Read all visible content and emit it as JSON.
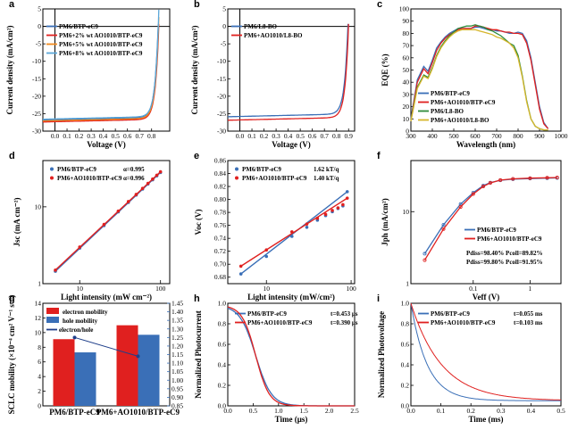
{
  "colors": {
    "blue": "#3a6fb7",
    "red": "#e0201f",
    "orange": "#f08a1e",
    "lightblue": "#5ba7d8",
    "green": "#2e8b3a",
    "yellow": "#d6b52a",
    "navy": "#1f3f8a"
  },
  "chart_data": [
    {
      "id": "a",
      "panel_label": "a",
      "type": "line",
      "xlabel": "Voltage (V)",
      "ylabel": "Current density (mA/cm²)",
      "xlim": [
        -0.1,
        0.95
      ],
      "ylim": [
        -30,
        5
      ],
      "xticks": [
        "0.0",
        "0.1",
        "0.2",
        "0.3",
        "0.4",
        "0.5",
        "0.6",
        "0.7",
        "0.8"
      ],
      "yticks": [
        "-30",
        "-25",
        "-20",
        "-15",
        "-10",
        "-5",
        "0",
        "5"
      ],
      "series": [
        {
          "name": "PM6/BTP-eC9",
          "color": "#3a6fb7",
          "jsc": 26.7,
          "voc": 0.855
        },
        {
          "name": "PM6+2% wt AO1010/BTP-eC9",
          "color": "#e0201f",
          "jsc": 27.3,
          "voc": 0.86
        },
        {
          "name": "PM6+5% wt AO1010/BTP-eC9",
          "color": "#f08a1e",
          "jsc": 27.0,
          "voc": 0.858
        },
        {
          "name": "PM6+8% wt AO1010/BTP-eC9",
          "color": "#5ba7d8",
          "jsc": 26.5,
          "voc": 0.856
        }
      ]
    },
    {
      "id": "b",
      "panel_label": "b",
      "type": "line",
      "xlabel": "Voltage (V)",
      "ylabel": "Current density (mA/cm²)",
      "xlim": [
        -0.1,
        0.95
      ],
      "ylim": [
        -30,
        5
      ],
      "xticks": [
        "0.0",
        "0.1",
        "0.2",
        "0.3",
        "0.4",
        "0.5",
        "0.6",
        "0.7",
        "0.8",
        "0.9"
      ],
      "yticks": [
        "-30",
        "-25",
        "-20",
        "-15",
        "-10",
        "-5",
        "0",
        "5"
      ],
      "series": [
        {
          "name": "PM6/L8-BO",
          "color": "#3a6fb7",
          "jsc": 25.8,
          "voc": 0.895
        },
        {
          "name": "PM6+AO1010/L8-BO",
          "color": "#e0201f",
          "jsc": 26.8,
          "voc": 0.9
        }
      ]
    },
    {
      "id": "c",
      "panel_label": "c",
      "type": "line",
      "xlabel": "Wavelength (nm)",
      "ylabel": "EQE (%)",
      "xlim": [
        300,
        1000
      ],
      "ylim": [
        0,
        100
      ],
      "xticks": [
        "300",
        "400",
        "500",
        "600",
        "700",
        "800",
        "900",
        "1000"
      ],
      "yticks": [
        "0",
        "10",
        "20",
        "30",
        "40",
        "50",
        "60",
        "70",
        "80",
        "90",
        "100"
      ],
      "x": [
        300,
        330,
        360,
        380,
        400,
        420,
        440,
        460,
        480,
        500,
        520,
        540,
        560,
        580,
        600,
        620,
        640,
        660,
        680,
        700,
        720,
        740,
        760,
        780,
        800,
        820,
        840,
        860,
        880,
        900,
        920,
        940
      ],
      "series": [
        {
          "name": "PM6/BTP-eC9",
          "color": "#3a6fb7",
          "values": [
            10,
            42,
            53,
            49,
            58,
            68,
            73,
            77,
            80,
            82,
            84,
            84,
            84,
            84,
            85,
            85,
            84,
            83,
            83,
            82,
            82,
            81,
            80,
            80,
            81,
            80,
            74,
            60,
            40,
            20,
            7,
            2
          ]
        },
        {
          "name": "PM6+AO1010/BTP-eC9",
          "color": "#e0201f",
          "values": [
            9,
            40,
            51,
            47,
            56,
            66,
            72,
            76,
            79,
            81,
            83,
            84,
            84,
            84,
            86,
            86,
            85,
            84,
            83,
            83,
            82,
            81,
            81,
            80,
            80,
            79,
            72,
            58,
            38,
            18,
            6,
            2
          ]
        },
        {
          "name": "PM6/L8-BO",
          "color": "#2e8b3a",
          "values": [
            9,
            36,
            46,
            44,
            52,
            62,
            69,
            74,
            78,
            81,
            84,
            85,
            86,
            86,
            87,
            86,
            85,
            83,
            82,
            80,
            78,
            75,
            72,
            70,
            62,
            45,
            25,
            10,
            4,
            2,
            1,
            1
          ]
        },
        {
          "name": "PM6+AO1010/L8-BO",
          "color": "#d6b52a",
          "values": [
            8,
            35,
            45,
            43,
            51,
            61,
            68,
            73,
            77,
            80,
            82,
            83,
            83,
            83,
            83,
            82,
            81,
            80,
            79,
            77,
            76,
            74,
            72,
            68,
            60,
            44,
            24,
            10,
            4,
            2,
            1,
            1
          ]
        }
      ]
    },
    {
      "id": "d",
      "panel_label": "d",
      "type": "scatter",
      "xlabel": "Light intensity (mW cm⁻²)",
      "ylabel": "Jsc (mA cm⁻²)",
      "xticks": [
        "10",
        "100"
      ],
      "yticks": [
        "1",
        "10"
      ],
      "x": [
        5,
        10,
        20,
        30,
        40,
        50,
        60,
        70,
        80,
        90,
        100
      ],
      "series": [
        {
          "name": "PM6/BTP-eC9",
          "color": "#3a6fb7",
          "annotation": "α=0.995",
          "values": [
            1.45,
            2.9,
            5.7,
            8.6,
            11.4,
            14.2,
            17.0,
            19.8,
            22.5,
            25.3,
            28.0
          ]
        },
        {
          "name": "PM6+AO1010/BTP-eC9",
          "color": "#e0201f",
          "annotation": "α=0.996",
          "values": [
            1.5,
            3.0,
            5.9,
            8.8,
            11.7,
            14.5,
            17.4,
            20.2,
            23.0,
            25.8,
            28.6
          ]
        }
      ]
    },
    {
      "id": "e",
      "panel_label": "e",
      "type": "scatter",
      "xlabel": "Light intensity (mW/cm²)",
      "ylabel": "Voc (V)",
      "ylim": [
        0.67,
        0.86
      ],
      "xticks": [
        "10",
        "100"
      ],
      "yticks": [
        "0.68",
        "0.70",
        "0.72",
        "0.74",
        "0.76",
        "0.78",
        "0.80",
        "0.82",
        "0.84",
        "0.86"
      ],
      "series": [
        {
          "name": "PM6/BTP-eC9",
          "color": "#3a6fb7",
          "annotation": "1.62 kT/q",
          "x": [
            5,
            10,
            20,
            30,
            40,
            50,
            60,
            70,
            80,
            90
          ],
          "values": [
            0.685,
            0.712,
            0.743,
            0.757,
            0.768,
            0.775,
            0.781,
            0.786,
            0.79,
            0.812
          ]
        },
        {
          "name": "PM6+AO1010/BTP-eC9",
          "color": "#e0201f",
          "annotation": "1.40 kT/q",
          "x": [
            5,
            10,
            20,
            30,
            40,
            50,
            60,
            70,
            80,
            90
          ],
          "values": [
            0.697,
            0.722,
            0.75,
            0.762,
            0.771,
            0.777,
            0.783,
            0.787,
            0.792,
            0.802
          ]
        }
      ]
    },
    {
      "id": "f",
      "panel_label": "f",
      "type": "line",
      "xlabel": "Veff (V)",
      "ylabel": "Jph (mA/cm²)",
      "xticks": [
        "0.1",
        "1"
      ],
      "yticks": [
        "1",
        "10"
      ],
      "x": [
        0.014,
        0.03,
        0.06,
        0.1,
        0.15,
        0.2,
        0.3,
        0.5,
        1,
        2,
        3
      ],
      "series": [
        {
          "name": "PM6/BTP-eC9",
          "color": "#3a6fb7",
          "annotation": "Pdiss=98.40%  Pcoll=89.82%",
          "values": [
            2.9,
            6.8,
            12.5,
            17.5,
            21.5,
            23.5,
            25.2,
            26.0,
            26.5,
            26.8,
            27.0
          ]
        },
        {
          "name": "PM6+AO1010/BTP-eC9",
          "color": "#e0201f",
          "annotation": "Pdiss=99.80%  Pcoll=91.95%",
          "values": [
            2.4,
            6.0,
            11.5,
            16.8,
            21.0,
            23.3,
            25.3,
            26.3,
            26.8,
            27.1,
            27.3
          ]
        }
      ]
    },
    {
      "id": "g",
      "panel_label": "g",
      "type": "bar",
      "ylabel": "SCLC mobility (×10⁻⁴ cm² V⁻¹ s⁻¹)",
      "ylabel_right": "",
      "categories": [
        "PM6/BTP-eC9",
        "PM6+AO1010/BTP-eC9"
      ],
      "ylim": [
        0,
        14
      ],
      "ylim_right": [
        0.85,
        1.45
      ],
      "yticks": [
        "0",
        "2",
        "4",
        "6",
        "8",
        "10",
        "12",
        "14"
      ],
      "yticks_right": [
        "0.85",
        "0.90",
        "0.95",
        "1.00",
        "1.05",
        "1.10",
        "1.15",
        "1.20",
        "1.25",
        "1.30",
        "1.35",
        "1.40",
        "1.45"
      ],
      "series": [
        {
          "name": "electron mobility",
          "color": "#e0201f",
          "values": [
            9.1,
            11.0
          ]
        },
        {
          "name": "hole mobility",
          "color": "#3a6fb7",
          "values": [
            7.3,
            9.7
          ]
        },
        {
          "name": "electron/hole",
          "color": "#1f3f8a",
          "values": [
            1.25,
            1.14
          ]
        }
      ]
    },
    {
      "id": "h",
      "panel_label": "h",
      "type": "line",
      "xlabel": "Time (μs)",
      "ylabel": "Normalized Photocurrent",
      "xlim": [
        0,
        2.5
      ],
      "ylim": [
        0,
        1
      ],
      "xticks": [
        "0.0",
        "0.5",
        "1.0",
        "1.5",
        "2.0",
        "2.5"
      ],
      "yticks": [
        "0.0",
        "0.2",
        "0.4",
        "0.6",
        "0.8",
        "1.0"
      ],
      "series": [
        {
          "name": "PM6/BTP-eC9",
          "color": "#3a6fb7",
          "annotation": "t=0.453 μs",
          "tau": 0.453
        },
        {
          "name": "PM6+AO1010/BTP-eC9",
          "color": "#e0201f",
          "annotation": "t=0.390 μs",
          "tau": 0.39
        }
      ]
    },
    {
      "id": "i",
      "panel_label": "i",
      "type": "line",
      "xlabel": "Time (ms)",
      "ylabel": "Normalized Photovoltage",
      "xlim": [
        0,
        0.5
      ],
      "ylim": [
        0,
        1
      ],
      "xticks": [
        "0.0",
        "0.1",
        "0.2",
        "0.3",
        "0.4",
        "0.5"
      ],
      "yticks": [
        "0.0",
        "0.2",
        "0.4",
        "0.6",
        "0.8",
        "1.0"
      ],
      "series": [
        {
          "name": "PM6/BTP-eC9",
          "color": "#3a6fb7",
          "annotation": "t=0.055 ms",
          "tau": 0.055
        },
        {
          "name": "PM6+AO1010/BTP-eC9",
          "color": "#e0201f",
          "annotation": "t=0.103 ms",
          "tau": 0.103
        }
      ]
    }
  ]
}
